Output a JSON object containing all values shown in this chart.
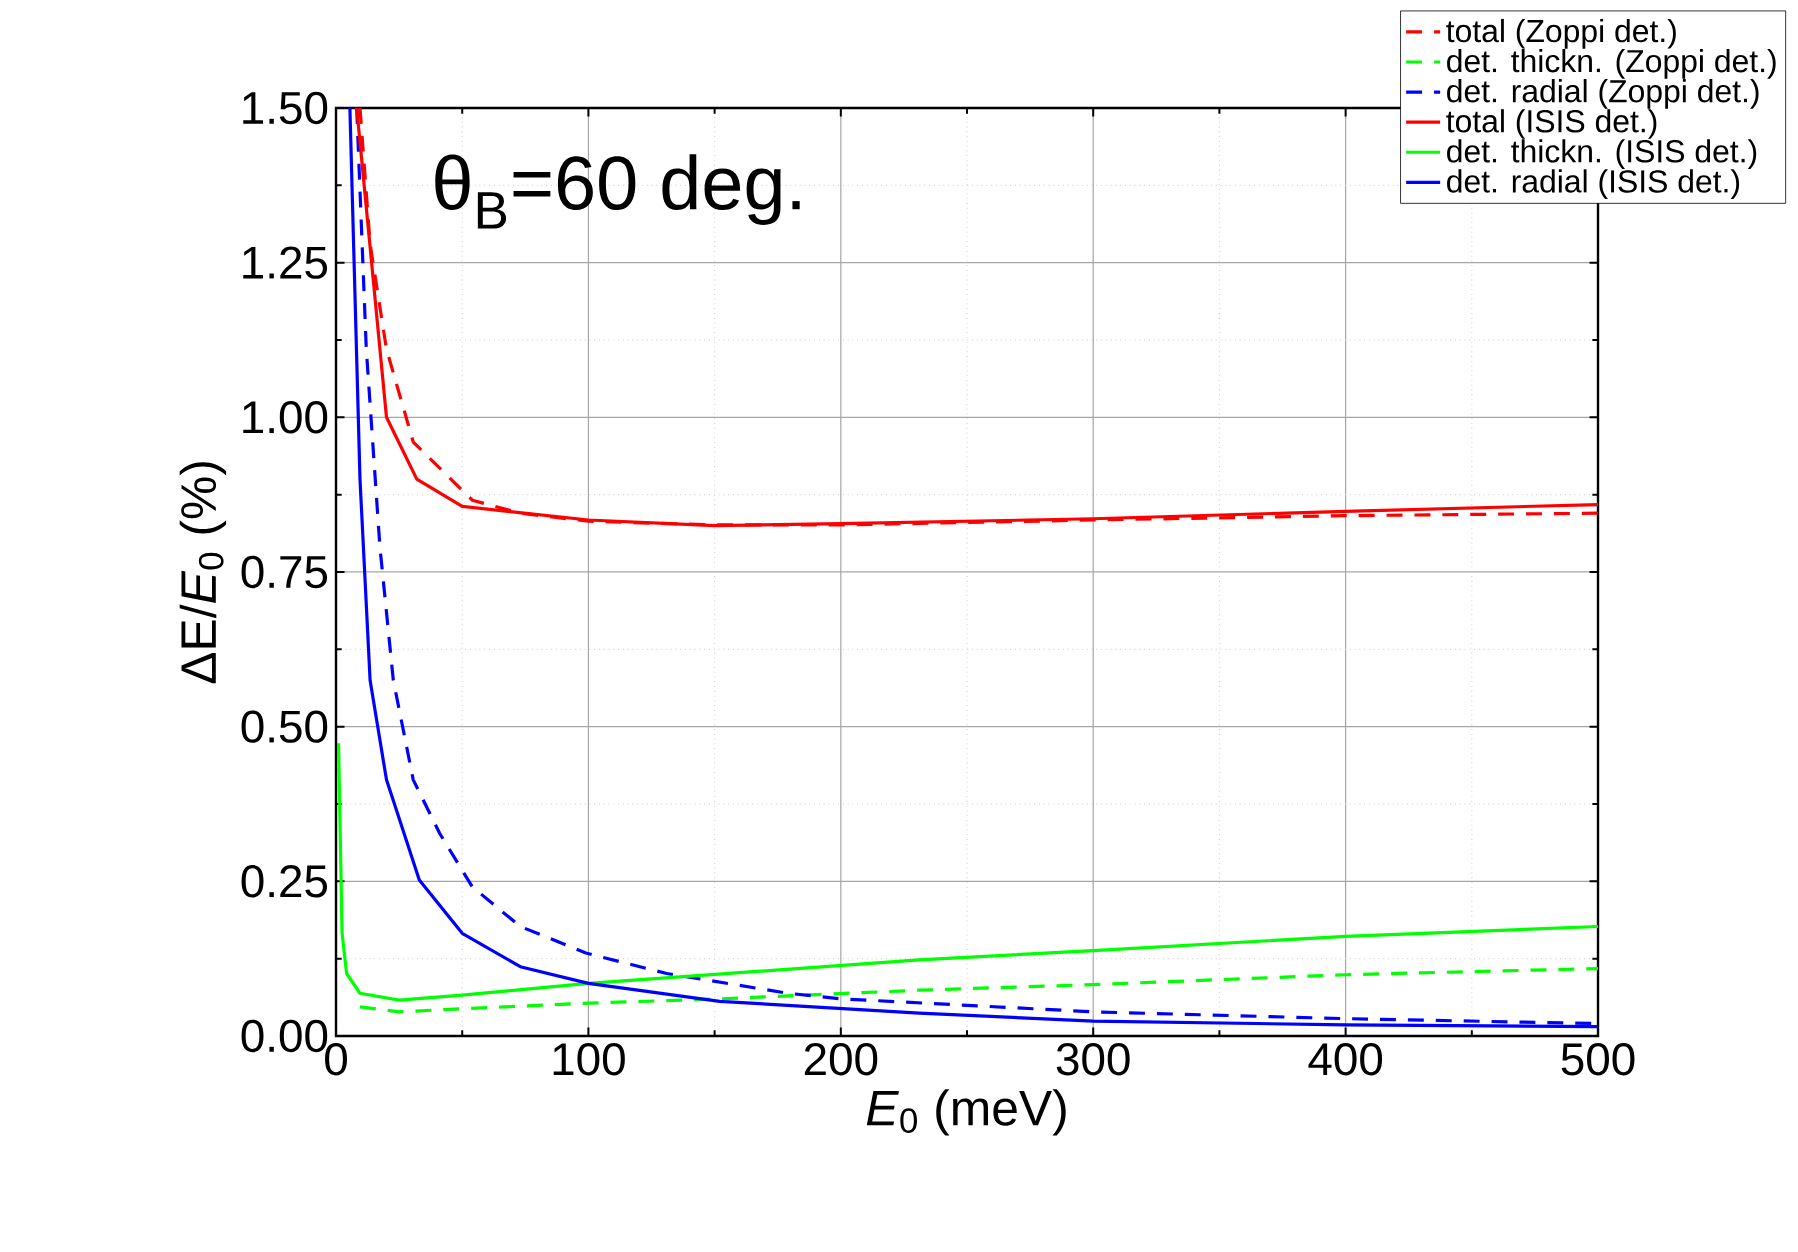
{
  "chart_data": {
    "type": "line",
    "xlabel": "*E*$_{0}$ (meV)",
    "ylabel": "ΔE/*E*$_{0}$ (%)",
    "annotations": [
      "θ$_{B}$=60 deg."
    ],
    "xlim": [
      0,
      500
    ],
    "ylim": [
      0,
      1.5
    ],
    "xticks": [
      0,
      100,
      200,
      300,
      400,
      500
    ],
    "yticks": [
      {
        "value": 0,
        "label": "0.00"
      },
      {
        "value": 0.25,
        "label": "0.25"
      },
      {
        "value": 0.5,
        "label": "0.50"
      },
      {
        "value": 0.75,
        "label": "0.75"
      },
      {
        "value": 1,
        "label": "1.00"
      },
      {
        "value": 1.25,
        "label": "1.25"
      },
      {
        "value": 1.5,
        "label": "1.50"
      }
    ],
    "grid": true,
    "legend": "top right",
    "series": [
      {
        "name": "total (Zoppi det.)",
        "color": "#ff0000",
        "line_style": "dashed",
        "x": [
          9.5,
          13.5,
          20,
          30.6,
          54,
          73,
          100,
          150,
          200,
          300,
          400,
          500
        ],
        "values": [
          1.5,
          1.28,
          1.11,
          0.96,
          0.866,
          0.845,
          0.832,
          0.826,
          0.826,
          0.834,
          0.841,
          0.845
        ]
      },
      {
        "name": "det. thickn. (Zoppi det.)",
        "color": "#00ff00",
        "line_style": "dashed",
        "x": [
          9.5,
          25,
          50,
          100,
          152,
          231,
          300,
          400,
          500
        ],
        "values": [
          0.047,
          0.039,
          0.044,
          0.053,
          0.06,
          0.074,
          0.083,
          0.099,
          0.109
        ]
      },
      {
        "name": "det. radial (Zoppi det.)",
        "color": "#0000ff",
        "line_style": "dashed",
        "x": [
          8.2,
          12,
          17.4,
          22.7,
          30.6,
          41,
          54,
          73,
          99,
          131,
          179,
          200,
          300,
          400,
          500
        ],
        "values": [
          1.5,
          1.11,
          0.79,
          0.575,
          0.414,
          0.328,
          0.241,
          0.177,
          0.134,
          0.101,
          0.069,
          0.06,
          0.039,
          0.028,
          0.02
        ]
      },
      {
        "name": "total (ISIS det.)",
        "color": "#ff0000",
        "line_style": "solid",
        "x": [
          8.2,
          20,
          32,
          50,
          100,
          150,
          200,
          300,
          400,
          500
        ],
        "values": [
          1.5,
          1.0,
          0.9,
          0.856,
          0.834,
          0.825,
          0.828,
          0.836,
          0.848,
          0.859
        ]
      },
      {
        "name": "det. thickn. (ISIS det.)",
        "color": "#00ff00",
        "line_style": "solid",
        "x": [
          1,
          2.4,
          4.2,
          9.5,
          25,
          50,
          100,
          231,
          300,
          400,
          500
        ],
        "values": [
          0.473,
          0.166,
          0.101,
          0.069,
          0.058,
          0.066,
          0.085,
          0.123,
          0.138,
          0.161,
          0.177
        ]
      },
      {
        "name": "det. radial (ISIS det.)",
        "color": "#0000ff",
        "line_style": "solid",
        "x": [
          5.5,
          9.5,
          13.5,
          20,
          33,
          50,
          73,
          100,
          152,
          231,
          300,
          400,
          500
        ],
        "values": [
          1.5,
          0.9,
          0.575,
          0.414,
          0.252,
          0.166,
          0.112,
          0.085,
          0.056,
          0.037,
          0.024,
          0.018,
          0.015
        ]
      }
    ]
  }
}
